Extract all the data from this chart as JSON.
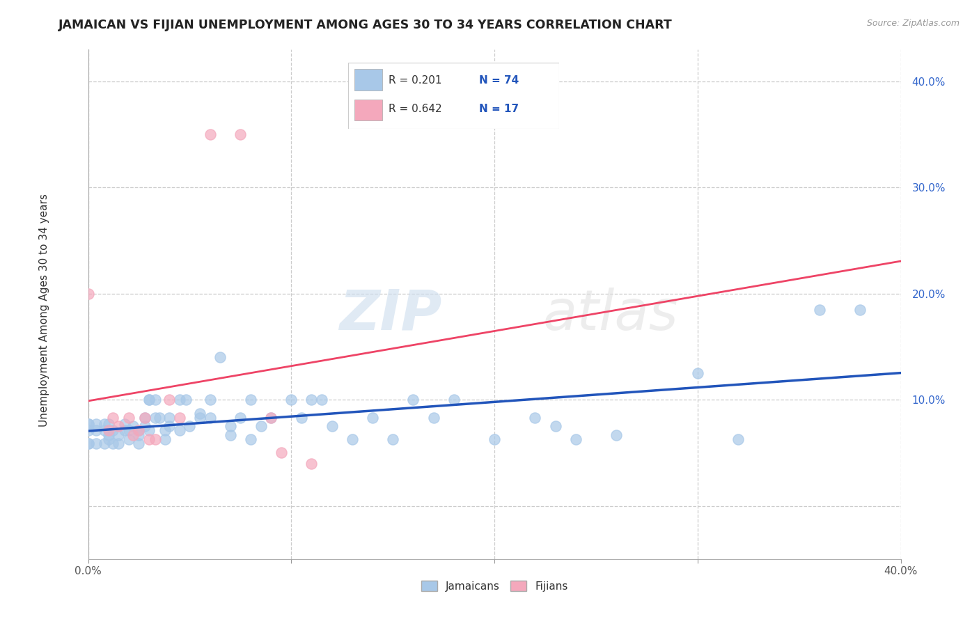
{
  "title": "JAMAICAN VS FIJIAN UNEMPLOYMENT AMONG AGES 30 TO 34 YEARS CORRELATION CHART",
  "source_text": "Source: ZipAtlas.com",
  "ylabel": "Unemployment Among Ages 30 to 34 years",
  "xlim": [
    0.0,
    0.4
  ],
  "ylim": [
    -0.05,
    0.43
  ],
  "y_ticks": [
    0.0,
    0.1,
    0.2,
    0.3,
    0.4
  ],
  "x_ticks": [
    0.0,
    0.1,
    0.2,
    0.3,
    0.4
  ],
  "legend_labels": [
    "Jamaicans",
    "Fijians"
  ],
  "jamaican_color": "#A8C8E8",
  "fijian_color": "#F4A8BC",
  "jamaican_line_color": "#2255BB",
  "fijian_line_color": "#EE4466",
  "watermark_zip": "ZIP",
  "watermark_atlas": "atlas",
  "R_jamaican": 0.201,
  "N_jamaican": 74,
  "R_fijian": 0.642,
  "N_fijian": 17,
  "jamaican_scatter": [
    [
      0.0,
      0.077
    ],
    [
      0.0,
      0.059
    ],
    [
      0.0,
      0.077
    ],
    [
      0.0,
      0.071
    ],
    [
      0.0,
      0.059
    ],
    [
      0.004,
      0.059
    ],
    [
      0.004,
      0.077
    ],
    [
      0.004,
      0.071
    ],
    [
      0.008,
      0.059
    ],
    [
      0.008,
      0.071
    ],
    [
      0.008,
      0.077
    ],
    [
      0.01,
      0.063
    ],
    [
      0.01,
      0.067
    ],
    [
      0.01,
      0.077
    ],
    [
      0.012,
      0.071
    ],
    [
      0.012,
      0.059
    ],
    [
      0.015,
      0.059
    ],
    [
      0.015,
      0.067
    ],
    [
      0.018,
      0.071
    ],
    [
      0.018,
      0.077
    ],
    [
      0.02,
      0.063
    ],
    [
      0.02,
      0.071
    ],
    [
      0.022,
      0.075
    ],
    [
      0.025,
      0.059
    ],
    [
      0.025,
      0.067
    ],
    [
      0.025,
      0.071
    ],
    [
      0.028,
      0.075
    ],
    [
      0.028,
      0.083
    ],
    [
      0.03,
      0.1
    ],
    [
      0.03,
      0.071
    ],
    [
      0.03,
      0.1
    ],
    [
      0.033,
      0.083
    ],
    [
      0.033,
      0.1
    ],
    [
      0.035,
      0.083
    ],
    [
      0.038,
      0.063
    ],
    [
      0.038,
      0.071
    ],
    [
      0.04,
      0.075
    ],
    [
      0.04,
      0.083
    ],
    [
      0.045,
      0.1
    ],
    [
      0.045,
      0.071
    ],
    [
      0.048,
      0.1
    ],
    [
      0.05,
      0.075
    ],
    [
      0.055,
      0.087
    ],
    [
      0.055,
      0.083
    ],
    [
      0.06,
      0.1
    ],
    [
      0.06,
      0.083
    ],
    [
      0.065,
      0.14
    ],
    [
      0.07,
      0.075
    ],
    [
      0.07,
      0.067
    ],
    [
      0.075,
      0.083
    ],
    [
      0.08,
      0.1
    ],
    [
      0.08,
      0.063
    ],
    [
      0.085,
      0.075
    ],
    [
      0.09,
      0.083
    ],
    [
      0.1,
      0.1
    ],
    [
      0.105,
      0.083
    ],
    [
      0.11,
      0.1
    ],
    [
      0.115,
      0.1
    ],
    [
      0.12,
      0.075
    ],
    [
      0.13,
      0.063
    ],
    [
      0.14,
      0.083
    ],
    [
      0.15,
      0.063
    ],
    [
      0.16,
      0.1
    ],
    [
      0.17,
      0.083
    ],
    [
      0.18,
      0.1
    ],
    [
      0.2,
      0.063
    ],
    [
      0.22,
      0.083
    ],
    [
      0.23,
      0.075
    ],
    [
      0.24,
      0.063
    ],
    [
      0.26,
      0.067
    ],
    [
      0.3,
      0.125
    ],
    [
      0.32,
      0.063
    ],
    [
      0.36,
      0.185
    ],
    [
      0.38,
      0.185
    ]
  ],
  "fijian_scatter": [
    [
      0.0,
      0.2
    ],
    [
      0.01,
      0.071
    ],
    [
      0.012,
      0.083
    ],
    [
      0.015,
      0.075
    ],
    [
      0.02,
      0.083
    ],
    [
      0.022,
      0.067
    ],
    [
      0.025,
      0.071
    ],
    [
      0.028,
      0.083
    ],
    [
      0.03,
      0.063
    ],
    [
      0.033,
      0.063
    ],
    [
      0.04,
      0.1
    ],
    [
      0.045,
      0.083
    ],
    [
      0.06,
      0.35
    ],
    [
      0.075,
      0.35
    ],
    [
      0.09,
      0.083
    ],
    [
      0.095,
      0.05
    ],
    [
      0.11,
      0.04
    ]
  ]
}
